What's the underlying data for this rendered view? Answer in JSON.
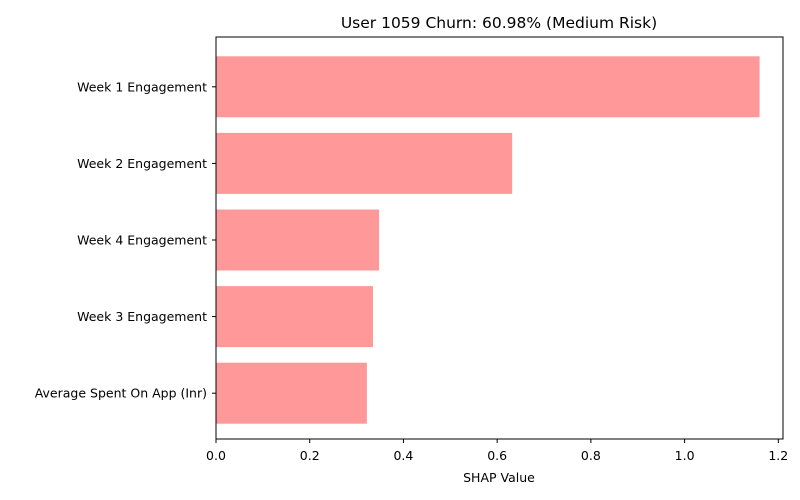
{
  "chart_data": {
    "type": "bar",
    "orientation": "horizontal",
    "title": "User 1059 Churn: 60.98% (Medium Risk)",
    "xlabel": "SHAP Value",
    "ylabel": "",
    "categories": [
      "Week 1 Engagement",
      "Week 2 Engagement",
      "Week 4 Engagement",
      "Week 3 Engagement",
      "Average Spent On App (Inr)"
    ],
    "values": [
      1.16,
      0.632,
      0.348,
      0.335,
      0.322
    ],
    "xlim": [
      0,
      1.21
    ],
    "xticks": [
      0.0,
      0.2,
      0.4,
      0.6,
      0.8,
      1.0,
      1.2
    ],
    "xtick_labels": [
      "0.0",
      "0.2",
      "0.4",
      "0.6",
      "0.8",
      "1.0",
      "1.2"
    ],
    "bar_color": "#ff9999",
    "grid": false,
    "legend": "none"
  }
}
